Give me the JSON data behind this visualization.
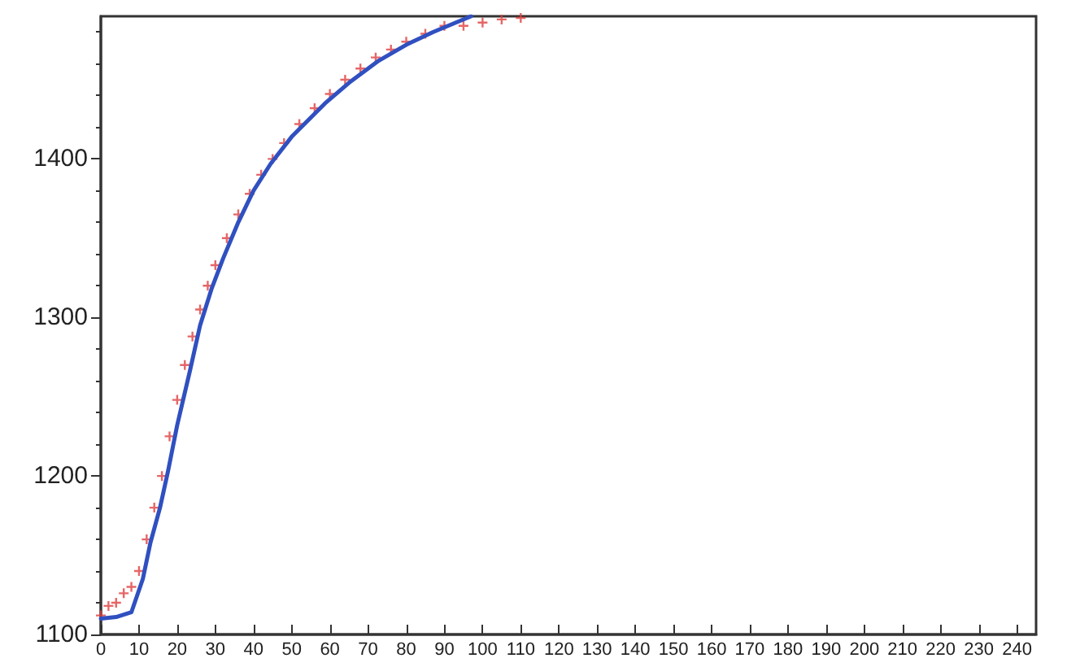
{
  "chart_data": {
    "type": "scatter",
    "xlim": [
      0,
      245
    ],
    "ylim": [
      1100,
      1490
    ],
    "xticks": [
      0,
      10,
      20,
      30,
      40,
      50,
      60,
      70,
      80,
      90,
      100,
      110,
      120,
      130,
      140,
      150,
      160,
      170,
      180,
      190,
      200,
      210,
      220,
      230,
      240
    ],
    "yticks": [
      1100,
      1200,
      1300,
      1400
    ],
    "grid": false,
    "series": [
      {
        "marker": "cross",
        "color": "#e04040",
        "x": [
          0,
          2,
          4,
          6,
          8,
          10,
          12,
          14,
          16,
          18,
          20,
          22,
          24,
          26,
          28,
          30,
          33,
          36,
          39,
          42,
          45,
          48,
          52,
          56,
          60,
          64,
          68,
          72,
          76,
          80,
          85,
          90,
          95,
          100,
          105,
          110
        ],
        "values": [
          1112,
          1118,
          1120,
          1126,
          1130,
          1140,
          1160,
          1180,
          1200,
          1225,
          1248,
          1270,
          1288,
          1305,
          1320,
          1333,
          1350,
          1365,
          1378,
          1390,
          1400,
          1410,
          1422,
          1432,
          1441,
          1450,
          1457,
          1464,
          1469,
          1474,
          1479,
          1484,
          1484,
          1486,
          1488,
          1489
        ]
      },
      {
        "type": "line",
        "marker": "none",
        "line_style": "solid",
        "color": "#3050c0",
        "x": [
          0,
          4,
          8,
          11,
          13,
          15.5,
          17.6,
          20,
          23.4,
          26,
          29,
          32,
          36,
          40,
          44.5,
          50,
          58.7,
          65,
          72.8,
          80,
          87,
          93,
          97
        ],
        "values": [
          1110,
          1111,
          1114,
          1135,
          1158,
          1180,
          1203,
          1232,
          1267,
          1295,
          1318,
          1337,
          1360,
          1380,
          1397,
          1414,
          1435,
          1448,
          1462,
          1472,
          1480,
          1486,
          1490
        ]
      }
    ]
  }
}
